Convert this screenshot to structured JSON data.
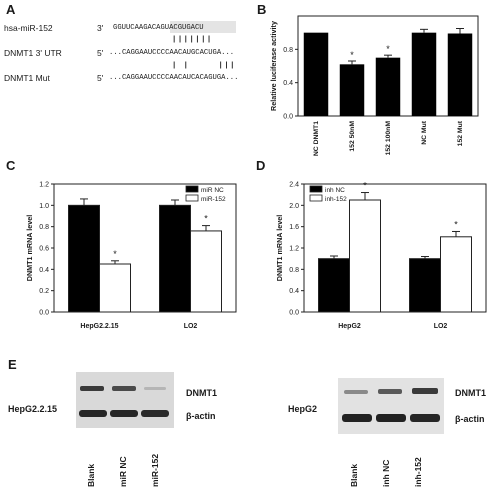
{
  "panels": {
    "A": {
      "label": "A",
      "rows": [
        {
          "name": "hsa-miR-152",
          "prime": "3'",
          "seq": "GGUUCAAGACAGUACGUGACU"
        },
        {
          "name": "DNMT1 3' UTR",
          "prime": "5'",
          "seq": "...CAGGAAUCCCCAACAUGCACUGA..."
        },
        {
          "name": "DNMT1   Mut",
          "prime": "5'",
          "seq": "...CAGGAAUCCCCAACAUCACAGUGA..."
        }
      ],
      "pairs_top": "|||||||",
      "pairs_bottom": "| |     |||"
    },
    "B": {
      "label": "B"
    },
    "C": {
      "label": "C"
    },
    "D": {
      "label": "D"
    },
    "E": {
      "label": "E",
      "left": {
        "cell": "HepG2.2.15",
        "band1": "DNMT1",
        "band2": "β-actin",
        "lanes": [
          "Blank",
          "miR NC",
          "miR-152"
        ]
      },
      "right": {
        "cell": "HepG2",
        "band1": "DNMT1",
        "band2": "β-actin",
        "lanes": [
          "Blank",
          "inh NC",
          "inh-152"
        ]
      }
    }
  },
  "chart_data": [
    {
      "panel": "B",
      "type": "bar",
      "categories": [
        "NC DNMT1",
        "152 50nM",
        "152 100nM",
        "NC Mut",
        "152 Mut"
      ],
      "values": [
        1.0,
        0.62,
        0.7,
        1.0,
        0.99
      ],
      "errors": [
        0.0,
        0.04,
        0.03,
        0.04,
        0.06
      ],
      "significant": [
        false,
        true,
        true,
        false,
        false
      ],
      "ylabel": "Relative luciferase activity",
      "ylim": [
        0,
        1.2
      ],
      "yticks": [
        0.0,
        0.4,
        0.8
      ],
      "color": "#000000"
    },
    {
      "panel": "C",
      "type": "bar",
      "categories": [
        "HepG2.2.15",
        "LO2"
      ],
      "series": [
        {
          "name": "miR NC",
          "values": [
            1.0,
            1.0
          ],
          "errors": [
            0.06,
            0.05
          ],
          "significant": [
            false,
            false
          ],
          "color": "#000000"
        },
        {
          "name": "miR-152",
          "values": [
            0.45,
            0.76
          ],
          "errors": [
            0.03,
            0.05
          ],
          "significant": [
            true,
            true
          ],
          "color": "#ffffff"
        }
      ],
      "ylabel": "DNMT1 mRNA level",
      "ylim": [
        0,
        1.2
      ],
      "yticks": [
        0.0,
        0.2,
        0.4,
        0.6,
        0.8,
        1.0,
        1.2
      ],
      "legend": "top-right"
    },
    {
      "panel": "D",
      "type": "bar",
      "categories": [
        "HepG2",
        "LO2"
      ],
      "series": [
        {
          "name": "inh NC",
          "values": [
            1.0,
            1.0
          ],
          "errors": [
            0.05,
            0.04
          ],
          "significant": [
            false,
            false
          ],
          "color": "#000000"
        },
        {
          "name": "inh-152",
          "values": [
            2.1,
            1.41
          ],
          "errors": [
            0.14,
            0.1
          ],
          "significant": [
            true,
            true
          ],
          "color": "#ffffff"
        }
      ],
      "ylabel": "DNMT1 mRNA level",
      "ylim": [
        0,
        2.4
      ],
      "yticks": [
        0.0,
        0.4,
        0.8,
        1.2,
        1.6,
        2.0,
        2.4
      ],
      "legend": "top-left"
    }
  ]
}
